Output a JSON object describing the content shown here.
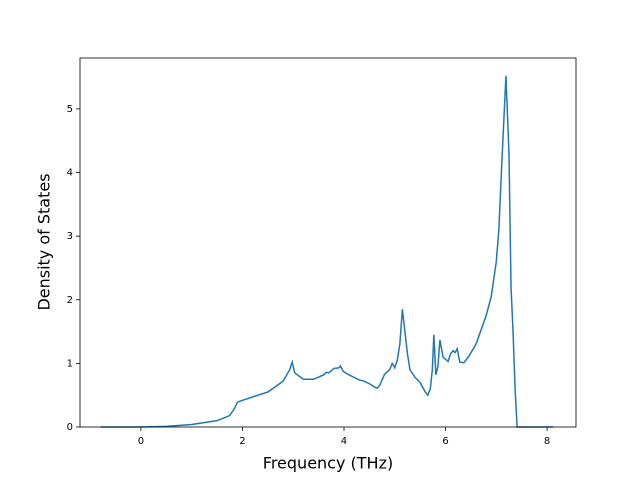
{
  "chart_data": {
    "type": "line",
    "xlabel": "Frequency (THz)",
    "ylabel": "Density of States",
    "x": [
      -0.79,
      0,
      0.5,
      1.0,
      1.5,
      1.75,
      1.85,
      1.9,
      2.0,
      2.5,
      2.8,
      2.93,
      2.98,
      3.03,
      3.2,
      3.4,
      3.6,
      3.65,
      3.7,
      3.8,
      3.9,
      3.93,
      3.98,
      4.05,
      4.2,
      4.3,
      4.4,
      4.5,
      4.6,
      4.65,
      4.7,
      4.8,
      4.9,
      4.95,
      5.0,
      5.05,
      5.1,
      5.15,
      5.2,
      5.25,
      5.3,
      5.4,
      5.5,
      5.6,
      5.65,
      5.7,
      5.74,
      5.77,
      5.81,
      5.85,
      5.89,
      5.95,
      6.05,
      6.1,
      6.15,
      6.19,
      6.23,
      6.28,
      6.36,
      6.45,
      6.6,
      6.8,
      6.9,
      7.0,
      7.05,
      7.1,
      7.19,
      7.25,
      7.29,
      7.33,
      7.37,
      7.41,
      8.12
    ],
    "values": [
      0,
      0,
      0.01,
      0.04,
      0.1,
      0.18,
      0.3,
      0.39,
      0.42,
      0.55,
      0.72,
      0.9,
      1.02,
      0.85,
      0.75,
      0.75,
      0.82,
      0.86,
      0.85,
      0.92,
      0.93,
      0.96,
      0.88,
      0.84,
      0.78,
      0.74,
      0.72,
      0.68,
      0.63,
      0.61,
      0.65,
      0.83,
      0.9,
      1.0,
      0.93,
      1.05,
      1.3,
      1.85,
      1.5,
      1.15,
      0.9,
      0.78,
      0.7,
      0.55,
      0.5,
      0.6,
      0.9,
      1.45,
      0.82,
      0.95,
      1.37,
      1.1,
      1.03,
      1.15,
      1.2,
      1.17,
      1.23,
      1.02,
      1.01,
      1.1,
      1.3,
      1.75,
      2.05,
      2.6,
      3.1,
      4.0,
      5.52,
      4.3,
      2.2,
      1.5,
      0.6,
      0,
      0
    ],
    "color": "#1f77b4",
    "xlim": [
      -1.2,
      8.57
    ],
    "ylim": [
      0,
      5.8
    ],
    "xticks": [
      0,
      2,
      4,
      6,
      8
    ],
    "yticks": [
      0,
      1,
      2,
      3,
      4,
      5
    ]
  }
}
